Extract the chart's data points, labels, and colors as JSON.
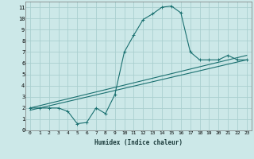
{
  "xlabel": "Humidex (Indice chaleur)",
  "bg_color": "#cce8e8",
  "grid_color": "#aacfcf",
  "line_color": "#1a7070",
  "xlim": [
    -0.5,
    23.5
  ],
  "ylim": [
    0,
    11.5
  ],
  "xticks": [
    0,
    1,
    2,
    3,
    4,
    5,
    6,
    7,
    8,
    9,
    10,
    11,
    12,
    13,
    14,
    15,
    16,
    17,
    18,
    19,
    20,
    21,
    22,
    23
  ],
  "yticks": [
    0,
    1,
    2,
    3,
    4,
    5,
    6,
    7,
    8,
    9,
    10,
    11
  ],
  "curve1_x": [
    0,
    1,
    2,
    3,
    4,
    5,
    6,
    7,
    8,
    9,
    10,
    11,
    12,
    13,
    14,
    15,
    16,
    17,
    18,
    19,
    20,
    21,
    22,
    23
  ],
  "curve1_y": [
    2.0,
    2.0,
    2.0,
    2.0,
    1.7,
    0.6,
    0.7,
    2.0,
    1.5,
    3.2,
    7.0,
    8.5,
    9.9,
    10.4,
    11.0,
    11.1,
    10.5,
    7.0,
    6.3,
    6.3,
    6.3,
    6.7,
    6.3,
    6.3
  ],
  "curve2_x": [
    0,
    23
  ],
  "curve2_y": [
    2.0,
    6.7
  ],
  "curve3_x": [
    0,
    23
  ],
  "curve3_y": [
    1.8,
    6.3
  ],
  "marker": "+"
}
